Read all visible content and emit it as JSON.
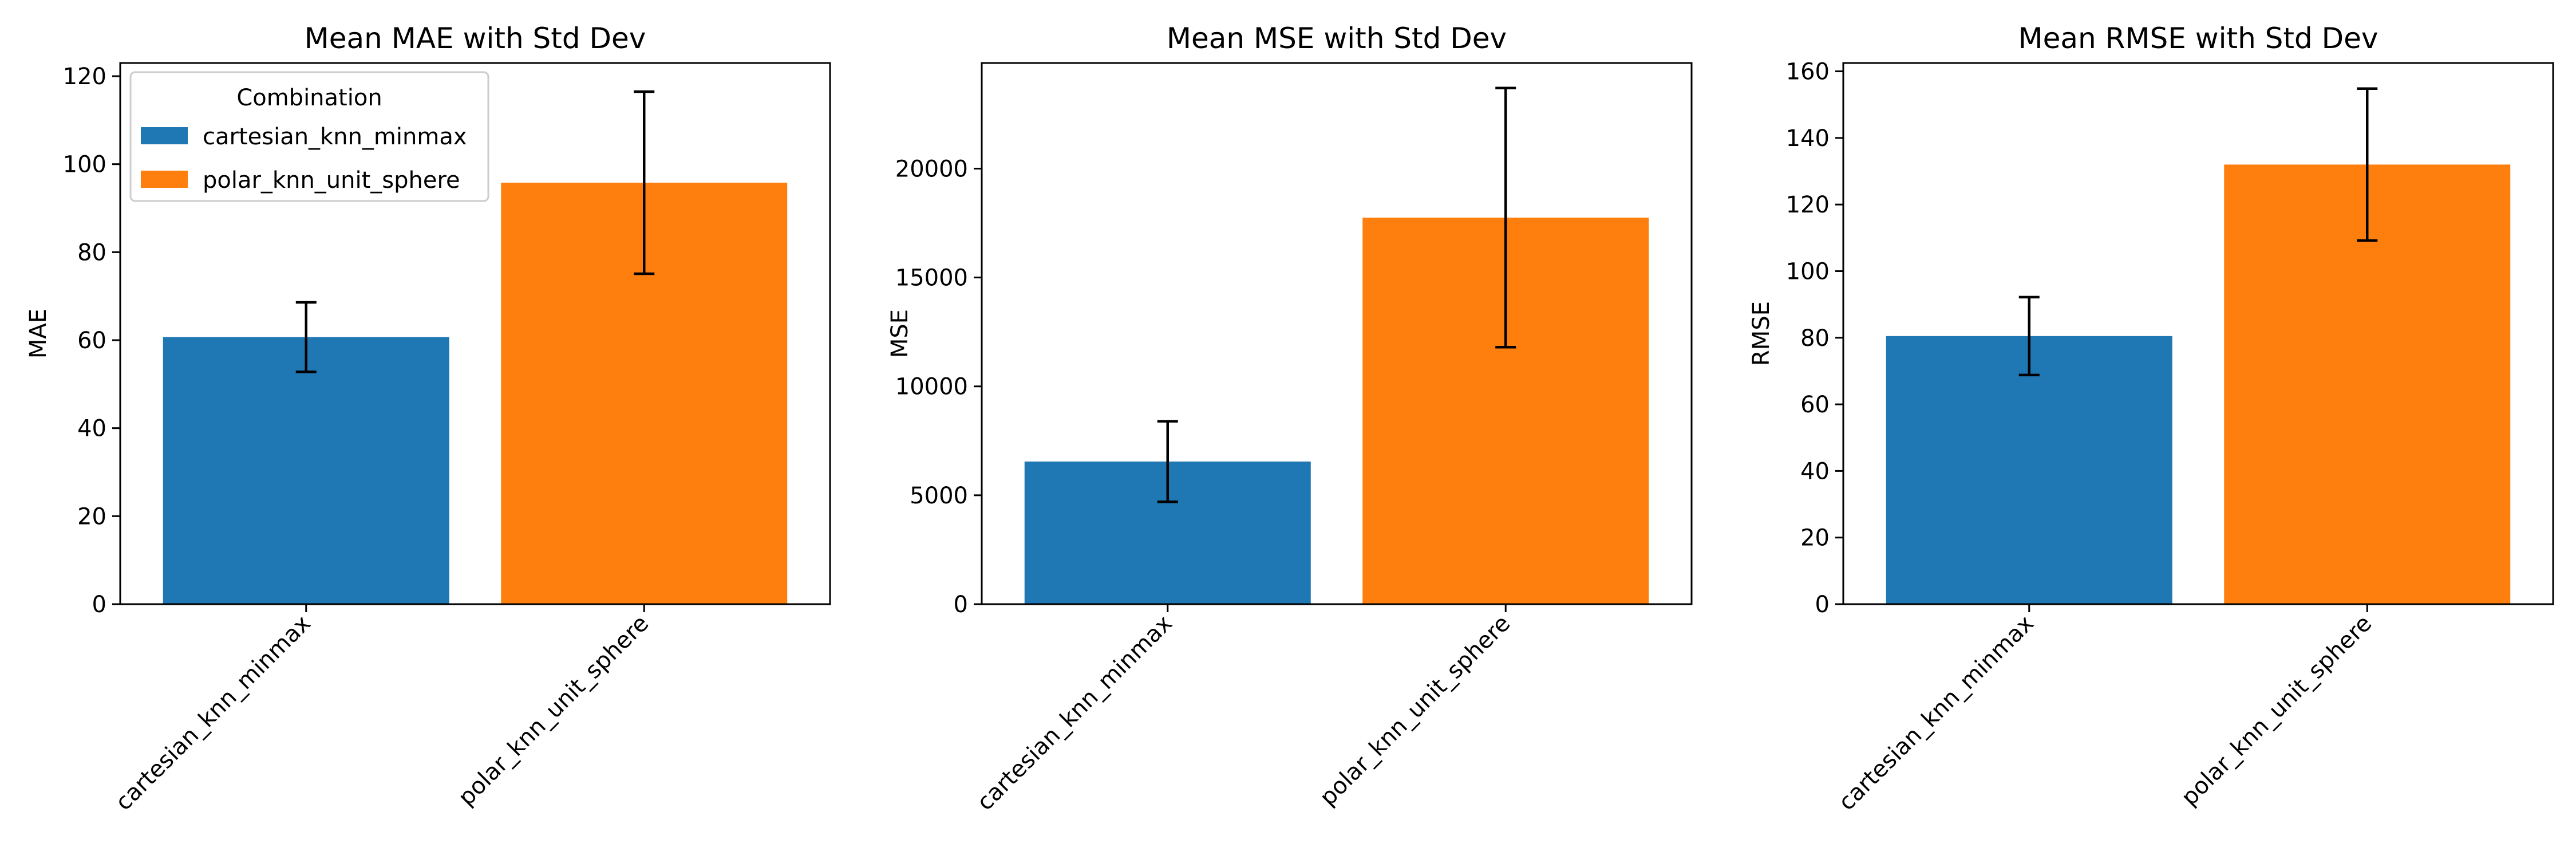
{
  "chart_data": [
    {
      "type": "bar",
      "title": "Mean MAE with Std Dev",
      "xlabel": "",
      "ylabel": "MAE",
      "categories": [
        "cartesian_knn_minmax",
        "polar_knn_unit_sphere"
      ],
      "values": [
        60.7,
        95.8
      ],
      "errors": [
        7.9,
        20.7
      ],
      "ylim": [
        0,
        123
      ],
      "yticks": [
        0,
        20,
        40,
        60,
        80,
        100,
        120
      ],
      "legend": {
        "title": "Combination",
        "placement": "top-left",
        "entries": [
          "cartesian_knn_minmax",
          "polar_knn_unit_sphere"
        ]
      }
    },
    {
      "type": "bar",
      "title": "Mean MSE with Std Dev",
      "xlabel": "",
      "ylabel": "MSE",
      "categories": [
        "cartesian_knn_minmax",
        "polar_knn_unit_sphere"
      ],
      "values": [
        6550,
        17750
      ],
      "errors": [
        1850,
        5950
      ],
      "ylim": [
        0,
        24850
      ],
      "yticks": [
        0,
        5000,
        10000,
        15000,
        20000
      ]
    },
    {
      "type": "bar",
      "title": "Mean RMSE with Std Dev",
      "xlabel": "",
      "ylabel": "RMSE",
      "categories": [
        "cartesian_knn_minmax",
        "polar_knn_unit_sphere"
      ],
      "values": [
        80.5,
        132.0
      ],
      "errors": [
        11.7,
        22.8
      ],
      "ylim": [
        0,
        162.5
      ],
      "yticks": [
        0,
        20,
        40,
        60,
        80,
        100,
        120,
        140,
        160
      ]
    }
  ],
  "colors": {
    "series": [
      "#1f77b4",
      "#ff7f0e"
    ],
    "errorbar": "#000000",
    "axes": "#000000"
  }
}
